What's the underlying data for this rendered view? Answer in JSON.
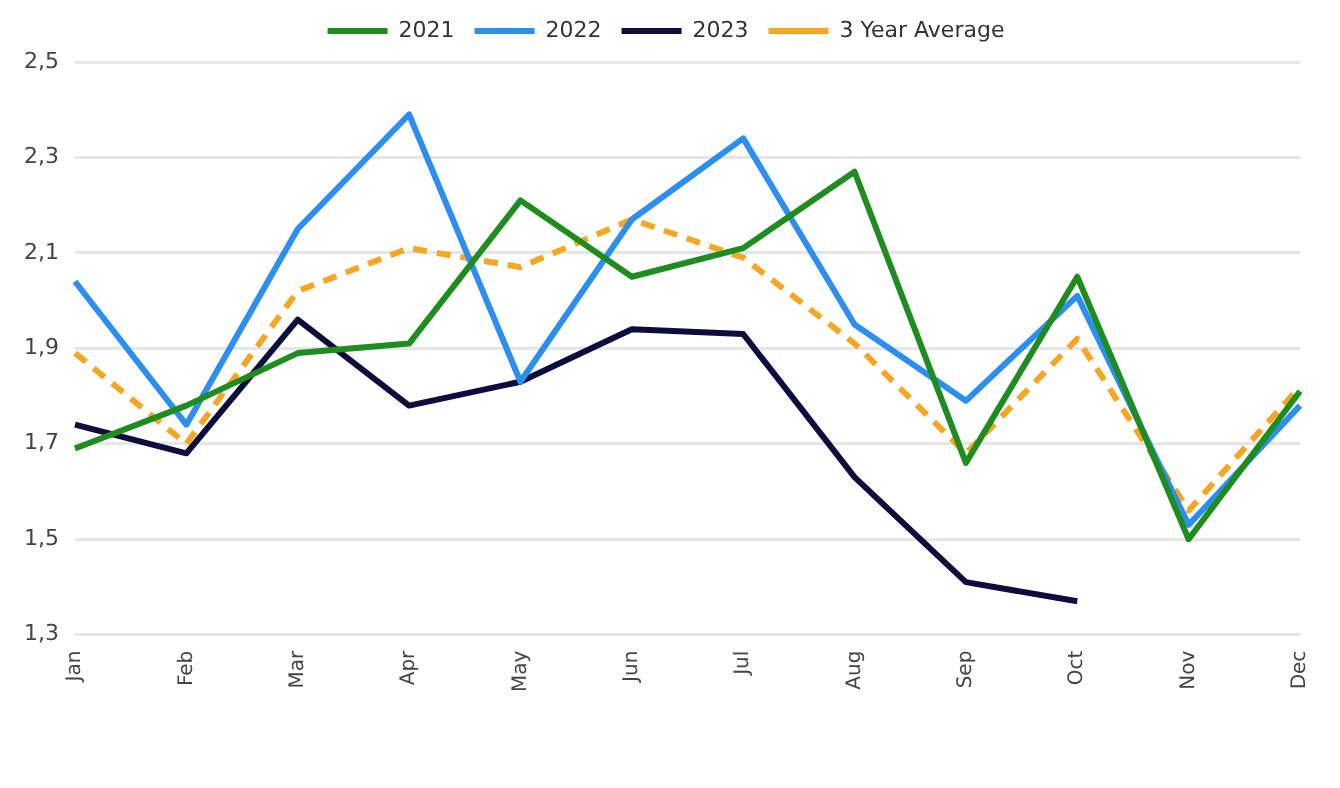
{
  "chart_data": {
    "type": "line",
    "categories": [
      "Jan",
      "Feb",
      "Mar",
      "Apr",
      "May",
      "Jun",
      "Jul",
      "Aug",
      "Sep",
      "Oct",
      "Nov",
      "Dec"
    ],
    "series": [
      {
        "name": "2021",
        "color": "#1e8c1e",
        "values": [
          1.69,
          1.78,
          1.89,
          1.91,
          2.21,
          2.05,
          2.11,
          2.27,
          1.66,
          2.05,
          1.5,
          1.81
        ]
      },
      {
        "name": "2022",
        "color": "#2b8ef0",
        "values": [
          2.04,
          1.74,
          2.15,
          2.39,
          1.83,
          2.17,
          2.34,
          1.95,
          1.79,
          2.01,
          1.53,
          1.78
        ]
      },
      {
        "name": "2023",
        "color": "#0d0d3d",
        "values": [
          1.74,
          1.68,
          1.96,
          1.78,
          1.83,
          1.94,
          1.93,
          1.63,
          1.41,
          1.37,
          null,
          null
        ]
      },
      {
        "name": "3 Year Average",
        "color": "#f5a623",
        "line_style": "dashed",
        "values": [
          1.89,
          1.7,
          2.02,
          2.11,
          2.07,
          2.17,
          2.09,
          1.91,
          1.68,
          1.92,
          1.56,
          1.82
        ]
      }
    ],
    "ylim": [
      1.3,
      2.5
    ],
    "yticks": [
      {
        "value": 1.3,
        "label": "1,3"
      },
      {
        "value": 1.5,
        "label": "1,5"
      },
      {
        "value": 1.7,
        "label": "1,7"
      },
      {
        "value": 1.9,
        "label": "1,9"
      },
      {
        "value": 2.1,
        "label": "2,1"
      },
      {
        "value": 2.3,
        "label": "2,3"
      },
      {
        "value": 2.5,
        "label": "2,5"
      }
    ],
    "grid": "y",
    "legend": "top",
    "marker": "none",
    "line_style": "solid"
  }
}
